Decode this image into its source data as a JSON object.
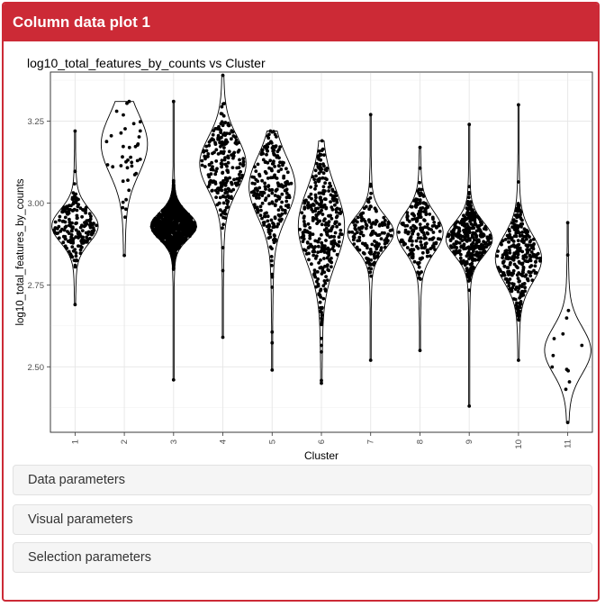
{
  "panel": {
    "title": "Column data plot 1",
    "accent_color": "#cc2a36"
  },
  "collapsibles": [
    {
      "label": "Data parameters"
    },
    {
      "label": "Visual parameters"
    },
    {
      "label": "Selection parameters"
    }
  ],
  "chart_data": {
    "type": "scatter",
    "subtype": "violin-beeswarm",
    "title": "log10_total_features_by_counts vs Cluster",
    "xlabel": "Cluster",
    "ylabel": "log10_total_features_by_counts",
    "x_tick_labels": [
      "1",
      "2",
      "3",
      "4",
      "5",
      "6",
      "7",
      "8",
      "9",
      "10",
      "11"
    ],
    "y_tick_labels": [
      "2.50",
      "2.75",
      "3.00",
      "3.25"
    ],
    "y_ticks": [
      2.5,
      2.75,
      3.0,
      3.25
    ],
    "ylim": [
      2.3,
      3.4
    ],
    "grid": true,
    "point_color": "#000000",
    "series": [
      {
        "category": "1",
        "min": 2.69,
        "max": 3.22,
        "center": 2.93,
        "spread": 0.05,
        "n": 180
      },
      {
        "category": "2",
        "min": 2.84,
        "max": 3.31,
        "center": 3.18,
        "spread": 0.09,
        "n": 40
      },
      {
        "category": "3",
        "min": 2.46,
        "max": 3.31,
        "center": 2.93,
        "spread": 0.04,
        "n": 1100
      },
      {
        "category": "4",
        "min": 2.59,
        "max": 3.39,
        "center": 3.12,
        "spread": 0.08,
        "n": 220
      },
      {
        "category": "5",
        "min": 2.49,
        "max": 3.22,
        "center": 3.05,
        "spread": 0.09,
        "n": 230
      },
      {
        "category": "6",
        "min": 2.45,
        "max": 3.19,
        "center": 2.93,
        "spread": 0.11,
        "n": 330
      },
      {
        "category": "7",
        "min": 2.52,
        "max": 3.27,
        "center": 2.91,
        "spread": 0.05,
        "n": 160
      },
      {
        "category": "8",
        "min": 2.55,
        "max": 3.17,
        "center": 2.91,
        "spread": 0.06,
        "n": 200
      },
      {
        "category": "9",
        "min": 2.38,
        "max": 3.24,
        "center": 2.89,
        "spread": 0.05,
        "n": 330
      },
      {
        "category": "10",
        "min": 2.52,
        "max": 3.3,
        "center": 2.83,
        "spread": 0.07,
        "n": 300
      },
      {
        "category": "11",
        "min": 2.33,
        "max": 2.94,
        "center": 2.55,
        "spread": 0.07,
        "n": 14
      }
    ]
  }
}
